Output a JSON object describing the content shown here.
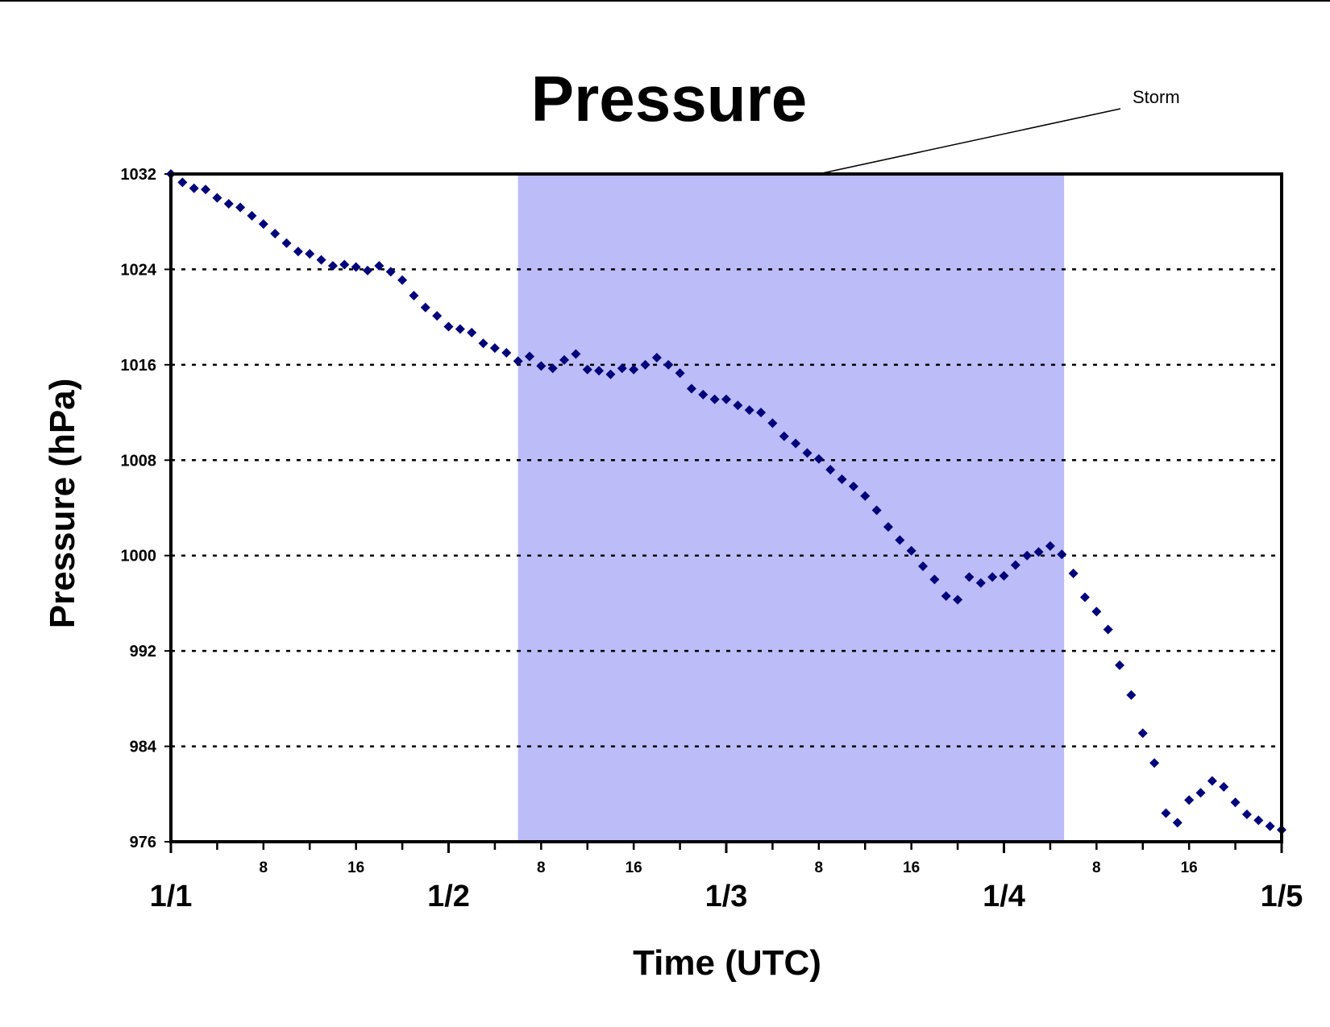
{
  "chart_data": {
    "type": "scatter",
    "title": "Pressure",
    "xlabel": "Time (UTC)",
    "ylabel": "Pressure (hPa)",
    "ylim": [
      976,
      1032
    ],
    "yticks": [
      976,
      984,
      992,
      1000,
      1008,
      1016,
      1024,
      1032
    ],
    "xlim": [
      0,
      96
    ],
    "day_ticks": [
      {
        "hour": 0,
        "label": "1/1"
      },
      {
        "hour": 24,
        "label": "1/2"
      },
      {
        "hour": 48,
        "label": "1/3"
      },
      {
        "hour": 72,
        "label": "1/4"
      },
      {
        "hour": 96,
        "label": "1/5"
      }
    ],
    "hour_ticks": [
      {
        "hour": 8,
        "label": "8"
      },
      {
        "hour": 16,
        "label": "16"
      },
      {
        "hour": 32,
        "label": "8"
      },
      {
        "hour": 40,
        "label": "16"
      },
      {
        "hour": 56,
        "label": "8"
      },
      {
        "hour": 64,
        "label": "16"
      },
      {
        "hour": 80,
        "label": "8"
      },
      {
        "hour": 88,
        "label": "16"
      }
    ],
    "grid": "horizontal dotted",
    "marker_color": "#00007a",
    "shaded_region": {
      "x_start": 30,
      "x_end": 77.2,
      "color": "#bbbcf8",
      "label": "Storm"
    },
    "series": [
      {
        "values": [
          [
            0,
            1032
          ],
          [
            1,
            1031.3
          ],
          [
            2,
            1030.8
          ],
          [
            3,
            1030.7
          ],
          [
            4,
            1030
          ],
          [
            5,
            1029.5
          ],
          [
            6,
            1029.2
          ],
          [
            7,
            1028.5
          ],
          [
            8,
            1027.8
          ],
          [
            9,
            1027
          ],
          [
            10,
            1026.2
          ],
          [
            11,
            1025.5
          ],
          [
            12,
            1025.3
          ],
          [
            13,
            1024.8
          ],
          [
            14,
            1024.3
          ],
          [
            15,
            1024.4
          ],
          [
            16,
            1024.2
          ],
          [
            17,
            1023.9
          ],
          [
            18,
            1024.3
          ],
          [
            19,
            1023.8
          ],
          [
            20,
            1023.1
          ],
          [
            21,
            1021.8
          ],
          [
            22,
            1020.8
          ],
          [
            23,
            1020.1
          ],
          [
            24,
            1019.2
          ],
          [
            25,
            1019
          ],
          [
            26,
            1018.7
          ],
          [
            27,
            1017.8
          ],
          [
            28,
            1017.4
          ],
          [
            29,
            1017
          ],
          [
            30,
            1016.3
          ],
          [
            31,
            1016.7
          ],
          [
            32,
            1015.9
          ],
          [
            33,
            1015.7
          ],
          [
            34,
            1016.4
          ],
          [
            35,
            1016.9
          ],
          [
            36,
            1015.6
          ],
          [
            37,
            1015.5
          ],
          [
            38,
            1015.2
          ],
          [
            39,
            1015.7
          ],
          [
            40,
            1015.6
          ],
          [
            41,
            1016
          ],
          [
            42,
            1016.6
          ],
          [
            43,
            1016
          ],
          [
            44,
            1015.3
          ],
          [
            45,
            1014
          ],
          [
            46,
            1013.5
          ],
          [
            47,
            1013.1
          ],
          [
            48,
            1013.1
          ],
          [
            49,
            1012.6
          ],
          [
            50,
            1012.2
          ],
          [
            51,
            1012
          ],
          [
            52,
            1011.1
          ],
          [
            53,
            1010
          ],
          [
            54,
            1009.4
          ],
          [
            55,
            1008.6
          ],
          [
            56,
            1008.1
          ],
          [
            57,
            1007.2
          ],
          [
            58,
            1006.4
          ],
          [
            59,
            1005.8
          ],
          [
            60,
            1005
          ],
          [
            61,
            1003.8
          ],
          [
            62,
            1002.4
          ],
          [
            63,
            1001.3
          ],
          [
            64,
            1000.4
          ],
          [
            65,
            999.1
          ],
          [
            66,
            998
          ],
          [
            67,
            996.6
          ],
          [
            68,
            996.3
          ],
          [
            69,
            998.2
          ],
          [
            70,
            997.7
          ],
          [
            71,
            998.2
          ],
          [
            72,
            998.3
          ],
          [
            73,
            999.2
          ],
          [
            74,
            1000
          ],
          [
            75,
            1000.3
          ],
          [
            76,
            1000.8
          ],
          [
            77,
            1000.1
          ],
          [
            78,
            998.5
          ],
          [
            79,
            996.5
          ],
          [
            80,
            995.3
          ],
          [
            81,
            993.8
          ],
          [
            82,
            990.8
          ],
          [
            83,
            988.3
          ],
          [
            84,
            985.1
          ],
          [
            85,
            982.6
          ],
          [
            86,
            978.4
          ],
          [
            87,
            977.6
          ],
          [
            88,
            979.5
          ],
          [
            89,
            980.1
          ],
          [
            90,
            981.1
          ],
          [
            91,
            980.6
          ],
          [
            92,
            979.3
          ],
          [
            93,
            978.3
          ],
          [
            94,
            977.8
          ],
          [
            95,
            977.3
          ],
          [
            96,
            977
          ]
        ]
      }
    ]
  }
}
